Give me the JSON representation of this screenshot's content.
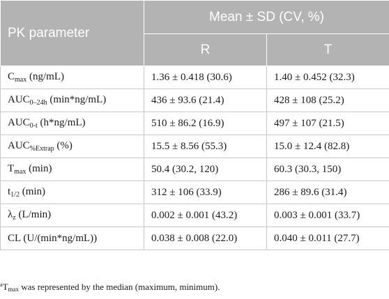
{
  "header": {
    "param": "PK parameter",
    "mean": "Mean ± SD (CV, %)",
    "r": "R",
    "t": "T"
  },
  "rows": [
    {
      "base": "C",
      "sub": "max",
      "unit": " (ng/mL)",
      "r": "1.36 ± 0.418 (30.6)",
      "t": "1.40 ± 0.452 (32.3)"
    },
    {
      "base": "AUC",
      "sub": "0–24h",
      "unit": " (min*ng/mL)",
      "r": "436 ± 93.6 (21.4)",
      "t": "428 ± 108 (25.2)"
    },
    {
      "base": "AUC",
      "sub": "0-t",
      "unit": " (h*ng/mL)",
      "r": "510 ± 86.2 (16.9)",
      "t": "497 ± 107 (21.5)"
    },
    {
      "base": "AUC",
      "sub": "%Extrap",
      "unit": " (%)",
      "r": "15.5 ± 8.56 (55.3)",
      "t": "15.0 ± 12.4 (82.8)"
    },
    {
      "base": "T",
      "sub": "max",
      "unit": " (min)",
      "r": "50.4 (30.2, 120)",
      "t": "60.3 (30.3, 150)"
    },
    {
      "base": "t",
      "sub": "1/2",
      "unit": " (min)",
      "r": "312 ± 106 (33.9)",
      "t": "286 ± 89.6 (31.4)"
    },
    {
      "base": "λ",
      "sub": "z",
      "unit": " (L/min)",
      "r": "0.002 ± 0.001 (43.2)",
      "t": "0.003 ± 0.001 (33.7)"
    },
    {
      "base": "CL (U/(min*ng/mL))",
      "sub": "",
      "unit": "",
      "r": "0.038 ± 0.008 (22.0)",
      "t": "0.040 ± 0.011 (27.7)"
    }
  ],
  "footnote": {
    "mark": "a",
    "base": "T",
    "sub": "max",
    "text": " was represented by the median (maximum, minimum)."
  }
}
